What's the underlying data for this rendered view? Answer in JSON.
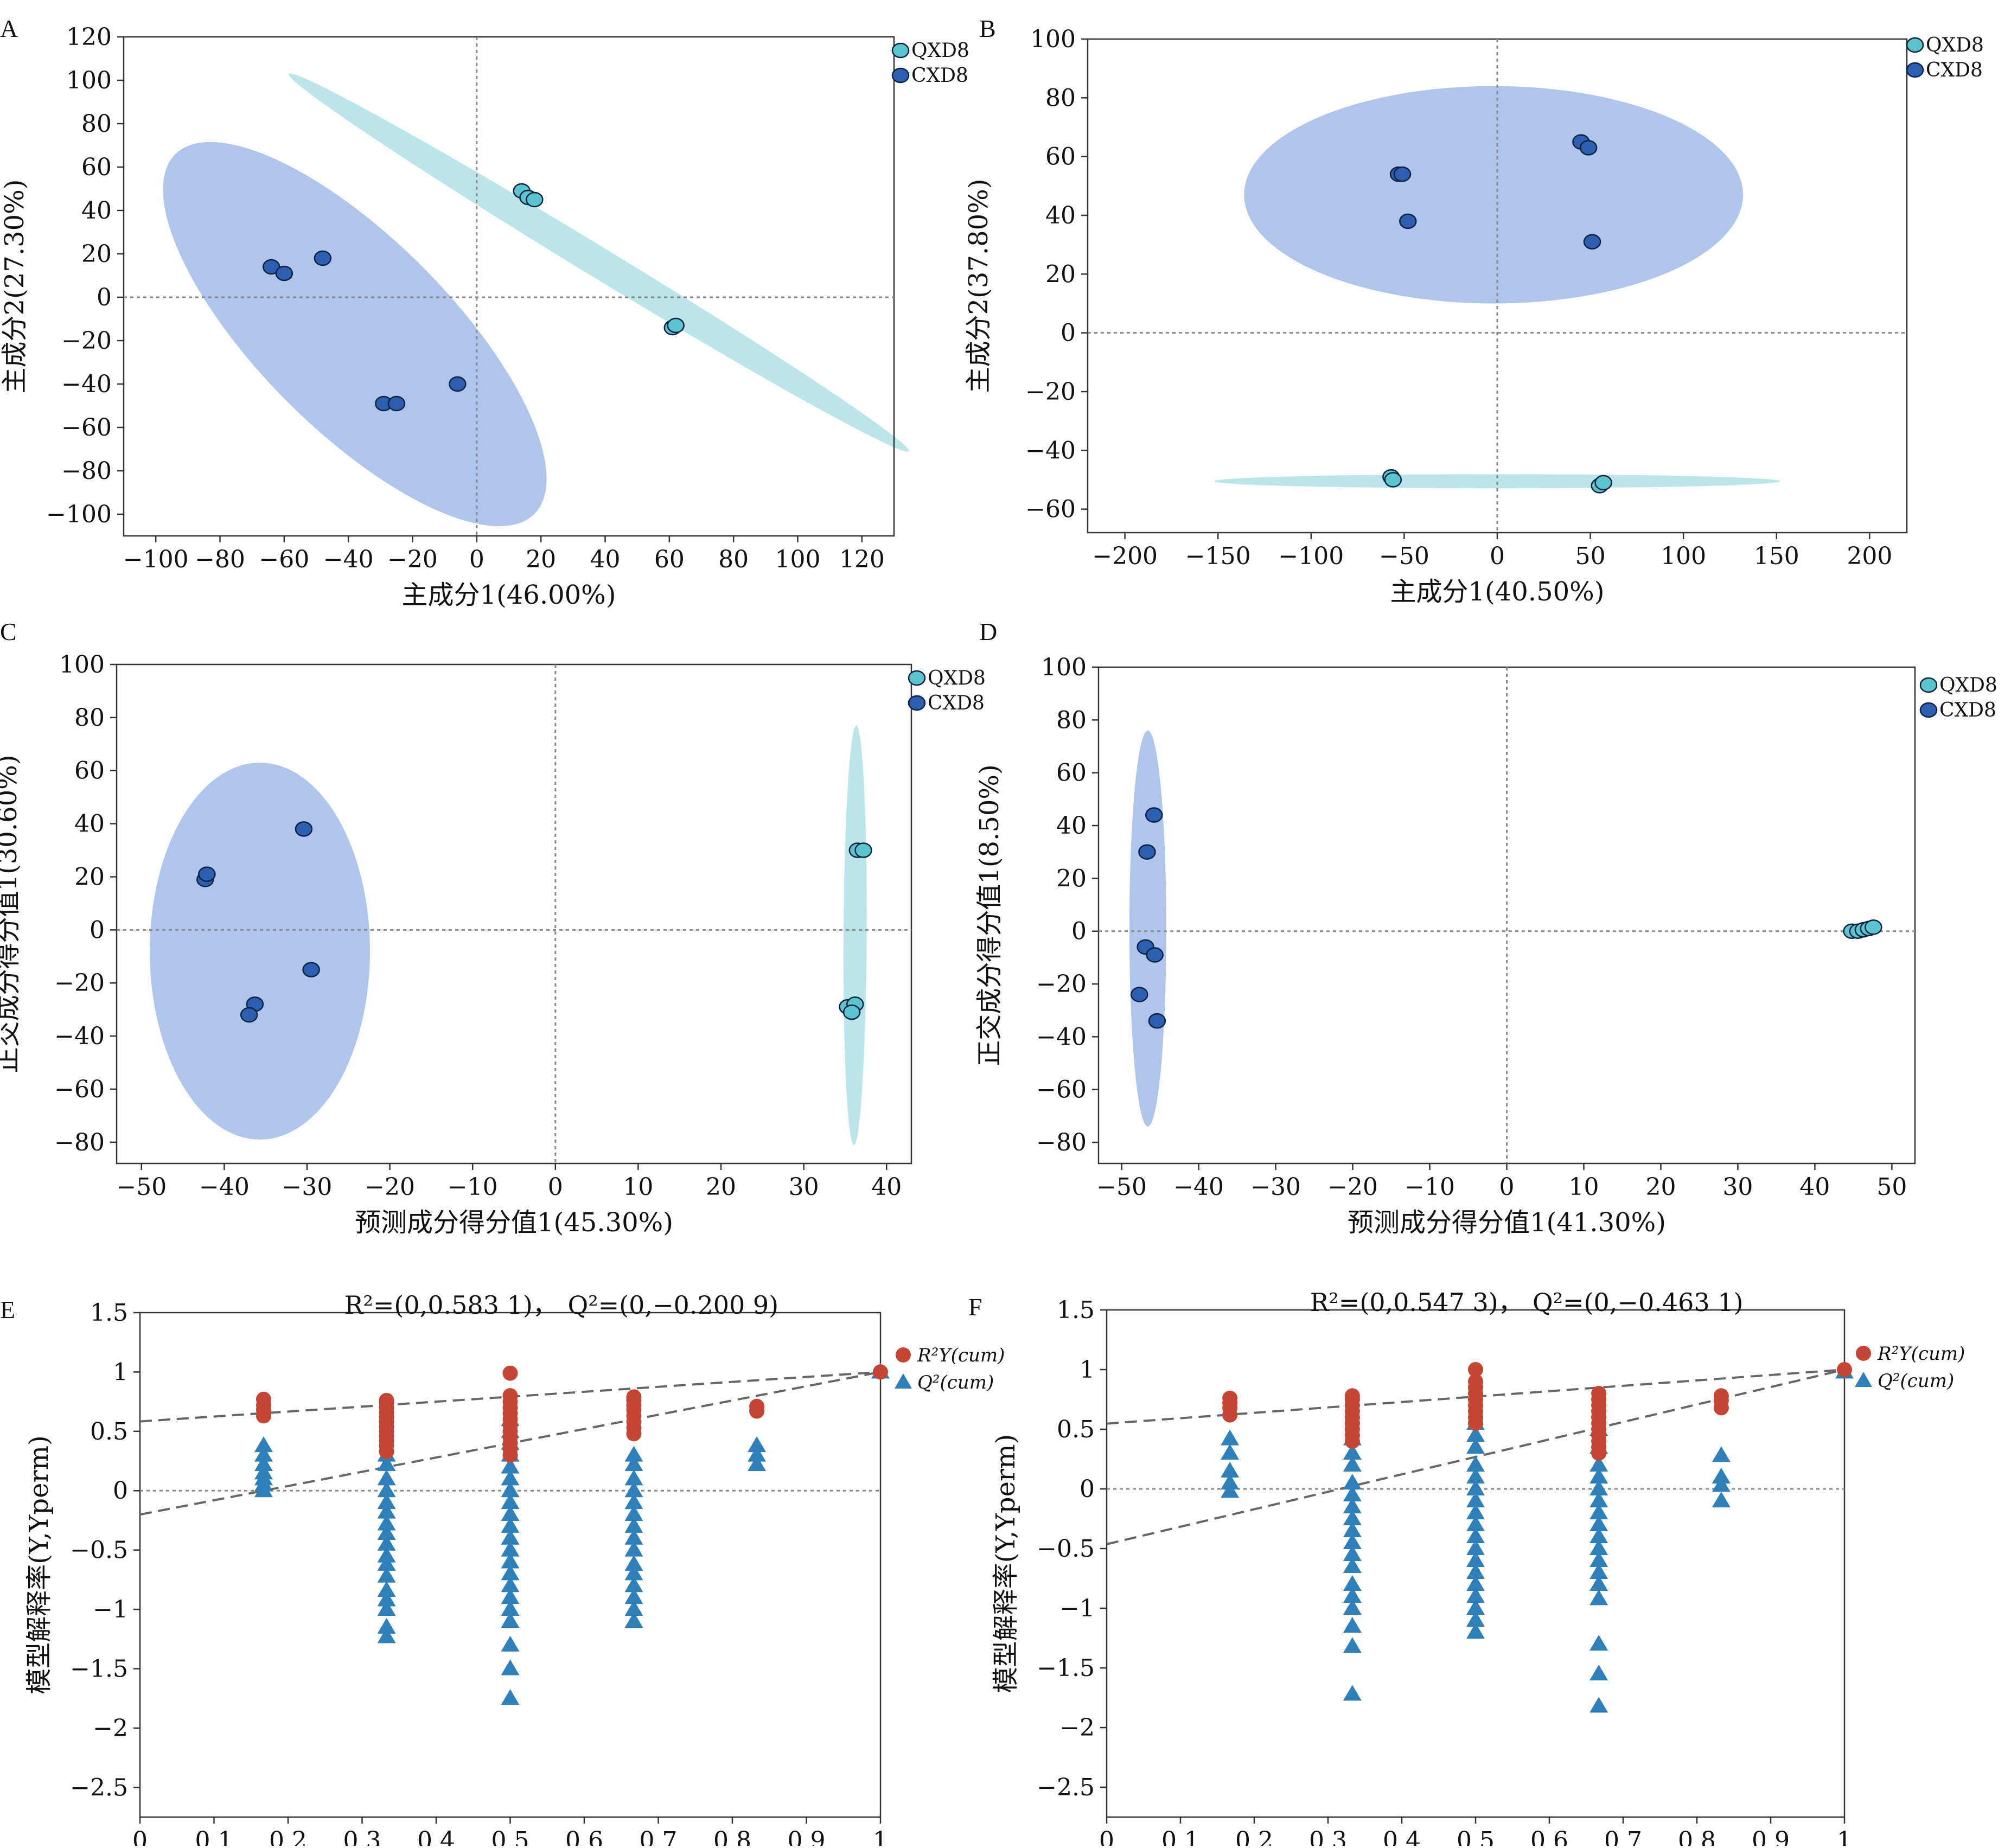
{
  "colors": {
    "qxd8_fill": "#5cc4cf",
    "qxd8_ellipse": "#8fd3dc",
    "cxd8_fill": "#2d5fb0",
    "cxd8_ellipse": "#7a9fde",
    "r2_color": "#c44534",
    "q2_color": "#2f80b8",
    "axis": "#333333",
    "zero_line": "#888888"
  },
  "chart_data": [
    {
      "panel": "A",
      "type": "scatter",
      "xlabel": "主成分1(46.00%)",
      "ylabel": "主成分2(27.30%)",
      "xlim": [
        -110,
        130
      ],
      "ylim": [
        -110,
        120
      ],
      "xticks": [
        -100,
        -80,
        -60,
        -40,
        -20,
        0,
        20,
        40,
        60,
        80,
        100,
        120
      ],
      "yticks": [
        -100,
        -80,
        -60,
        -40,
        -20,
        0,
        20,
        40,
        60,
        80,
        100,
        120
      ],
      "xtick_labels": [
        "−100",
        "−80",
        "−60",
        "−40",
        "−20",
        "0",
        "20",
        "40",
        "60",
        "80",
        "100",
        "120"
      ],
      "ytick_labels": [
        "−100",
        "−80",
        "−60",
        "−40",
        "−20",
        "0",
        "20",
        "40",
        "60",
        "80",
        "100",
        "120"
      ],
      "legend": [
        "QXD8",
        "CXD8"
      ],
      "series": [
        {
          "name": "QXD8",
          "points": [
            [
              14,
              49
            ],
            [
              16,
              46
            ],
            [
              18,
              45
            ],
            [
              61,
              -14
            ],
            [
              62,
              -13
            ]
          ],
          "ellipse": {
            "cx": 38,
            "cy": 16,
            "rx": 130,
            "ry": 7,
            "angle_deg": -42
          }
        },
        {
          "name": "CXD8",
          "points": [
            [
              -64,
              14
            ],
            [
              -60,
              11
            ],
            [
              -48,
              18
            ],
            [
              -29,
              -49
            ],
            [
              -25,
              -49
            ],
            [
              -6,
              -40
            ]
          ],
          "ellipse": {
            "cx": -38,
            "cy": -17,
            "rx": 100,
            "ry": 44,
            "angle_deg": -56
          }
        }
      ]
    },
    {
      "panel": "B",
      "type": "scatter",
      "xlabel": "主成分1(40.50%)",
      "ylabel": "主成分2(37.80%)",
      "xlim": [
        -220,
        220
      ],
      "ylim": [
        -68,
        100
      ],
      "xticks": [
        -200,
        -150,
        -100,
        -50,
        0,
        50,
        100,
        150,
        200
      ],
      "yticks": [
        -60,
        -40,
        -20,
        0,
        20,
        40,
        60,
        80,
        100
      ],
      "xtick_labels": [
        "−200",
        "−150",
        "−100",
        "−50",
        "0",
        "50",
        "100",
        "150",
        "200"
      ],
      "ytick_labels": [
        "−60",
        "−40",
        "−20",
        "0",
        "20",
        "40",
        "60",
        "80",
        "100"
      ],
      "legend": [
        "QXD8",
        "CXD8"
      ],
      "series": [
        {
          "name": "QXD8",
          "points": [
            [
              -57,
              -49
            ],
            [
              -56,
              -50
            ],
            [
              55,
              -52
            ],
            [
              57,
              -51
            ]
          ],
          "ellipse": {
            "cx": 0,
            "cy": -50.5,
            "rx": 152,
            "ry": 2.4,
            "angle_deg": 0
          }
        },
        {
          "name": "CXD8",
          "points": [
            [
              -53,
              54
            ],
            [
              -51,
              54
            ],
            [
              -48,
              38
            ],
            [
              45,
              65
            ],
            [
              49,
              63
            ],
            [
              51,
              31
            ]
          ],
          "ellipse": {
            "cx": -2,
            "cy": 47,
            "rx": 134,
            "ry": 37,
            "angle_deg": 0
          }
        }
      ]
    },
    {
      "panel": "C",
      "type": "scatter",
      "xlabel": "预测成分得分值1(45.30%)",
      "ylabel": "正交成分得分值1(30.60%)",
      "xlim": [
        -53,
        43
      ],
      "ylim": [
        -88,
        100
      ],
      "xticks": [
        -50,
        -40,
        -30,
        -20,
        -10,
        0,
        10,
        20,
        30,
        40
      ],
      "yticks": [
        -80,
        -60,
        -40,
        -20,
        0,
        20,
        40,
        60,
        80,
        100
      ],
      "xtick_labels": [
        "−50",
        "−40",
        "−30",
        "−20",
        "−10",
        "0",
        "10",
        "20",
        "30",
        "40"
      ],
      "ytick_labels": [
        "−80",
        "−60",
        "−40",
        "−20",
        "0",
        "20",
        "40",
        "60",
        "80",
        "100"
      ],
      "legend": [
        "QXD8",
        "CXD8"
      ],
      "series": [
        {
          "name": "QXD8",
          "points": [
            [
              36.5,
              30
            ],
            [
              37.2,
              30
            ],
            [
              35.3,
              -29
            ],
            [
              36.2,
              -28
            ],
            [
              35.8,
              -31
            ]
          ],
          "ellipse": {
            "cx": 36.2,
            "cy": -2,
            "rx": 1.4,
            "ry": 79,
            "angle_deg": -1
          }
        },
        {
          "name": "CXD8",
          "points": [
            [
              -42.3,
              19
            ],
            [
              -42.1,
              21
            ],
            [
              -30.4,
              38
            ],
            [
              -36.3,
              -28
            ],
            [
              -37,
              -32
            ],
            [
              -29.5,
              -15
            ]
          ],
          "ellipse": {
            "cx": -35.7,
            "cy": -8,
            "rx": 13.3,
            "ry": 71,
            "angle_deg": 0
          }
        }
      ]
    },
    {
      "panel": "D",
      "type": "scatter",
      "xlabel": "预测成分得分值1(41.30%)",
      "ylabel": "正交成分得分值1(8.50%)",
      "xlim": [
        -53,
        53
      ],
      "ylim": [
        -88,
        100
      ],
      "xticks": [
        -50,
        -40,
        -30,
        -20,
        -10,
        0,
        10,
        20,
        30,
        40,
        50
      ],
      "yticks": [
        -80,
        -60,
        -40,
        -20,
        0,
        20,
        40,
        60,
        80,
        100
      ],
      "xtick_labels": [
        "−50",
        "−40",
        "−30",
        "−20",
        "−10",
        "0",
        "10",
        "20",
        "30",
        "40",
        "50"
      ],
      "ytick_labels": [
        "−80",
        "−60",
        "−40",
        "−20",
        "0",
        "20",
        "40",
        "60",
        "80",
        "100"
      ],
      "legend": [
        "QXD8",
        "CXD8"
      ],
      "series": [
        {
          "name": "QXD8",
          "points": [
            [
              44.8,
              0
            ],
            [
              45.6,
              0
            ],
            [
              46.3,
              0.5
            ],
            [
              47,
              1
            ],
            [
              47.6,
              1.5
            ]
          ],
          "ellipse": null
        },
        {
          "name": "CXD8",
          "points": [
            [
              -45.8,
              44
            ],
            [
              -46.7,
              30
            ],
            [
              -46.9,
              -6
            ],
            [
              -45.7,
              -9
            ],
            [
              -47.7,
              -24
            ],
            [
              -45.4,
              -34
            ]
          ],
          "ellipse": {
            "cx": -46.6,
            "cy": 1,
            "rx": 2.4,
            "ry": 75,
            "angle_deg": 0
          }
        }
      ]
    },
    {
      "panel": "E",
      "type": "scatter",
      "annotation": {
        "r2": "R²=(0,0.583 1)，",
        "q2": "Q²=(0,−0.200 9)"
      },
      "ylabel": "模型解释率(Y,Yperm)",
      "xlim": [
        0,
        1
      ],
      "ylim": [
        -2.75,
        1.5
      ],
      "xticks": [
        0,
        0.1,
        0.2,
        0.3,
        0.4,
        0.5,
        0.6,
        0.7,
        0.8,
        0.9,
        1
      ],
      "yticks": [
        -2.5,
        -2,
        -1.5,
        -1,
        -0.5,
        0,
        0.5,
        1,
        1.5
      ],
      "xtick_labels": [
        "0",
        "0.1",
        "0.2",
        "0.3",
        "0.4",
        "0.5",
        "0.6",
        "0.7",
        "0.8",
        "0.9",
        "1"
      ],
      "ytick_labels": [
        "−2.5",
        "−2",
        "−1.5",
        "−1",
        "−0.5",
        "0",
        "0.5",
        "1",
        "1.5"
      ],
      "legend": [
        "R²Y(cum)",
        "Q²(cum)"
      ],
      "r2_line": [
        [
          0,
          0.5831
        ],
        [
          1,
          1
        ]
      ],
      "q2_line": [
        [
          0,
          -0.2009
        ],
        [
          1,
          1
        ]
      ],
      "columns": [
        {
          "x": 0.167,
          "r2": [
            0.63,
            0.68,
            0.72,
            0.77
          ],
          "q2": [
            0.38,
            0.3,
            0.22,
            0.15,
            0.1,
            0.05,
            0.0
          ]
        },
        {
          "x": 0.333,
          "r2": [
            0.33,
            0.38,
            0.42,
            0.46,
            0.5,
            0.54,
            0.58,
            0.62,
            0.66,
            0.7,
            0.74,
            0.76
          ],
          "q2": [
            0.3,
            0.22,
            0.1,
            0.0,
            -0.1,
            -0.18,
            -0.28,
            -0.36,
            -0.45,
            -0.55,
            -0.62,
            -0.72,
            -0.84,
            -0.92,
            -1.0,
            -1.15,
            -1.23
          ]
        },
        {
          "x": 0.5,
          "r2": [
            0.3,
            0.35,
            0.4,
            0.45,
            0.5,
            0.55,
            0.6,
            0.65,
            0.7,
            0.75,
            0.8,
            0.99
          ],
          "q2": [
            0.6,
            0.5,
            0.4,
            0.3,
            0.2,
            0.1,
            0.0,
            -0.1,
            -0.2,
            -0.3,
            -0.4,
            -0.5,
            -0.6,
            -0.7,
            -0.8,
            -0.9,
            -1.0,
            -1.1,
            -1.3,
            -1.5,
            -1.75
          ]
        },
        {
          "x": 0.667,
          "r2": [
            0.48,
            0.53,
            0.58,
            0.63,
            0.68,
            0.72,
            0.76,
            0.79
          ],
          "q2": [
            0.3,
            0.22,
            0.1,
            0.0,
            -0.1,
            -0.2,
            -0.3,
            -0.4,
            -0.5,
            -0.62,
            -0.7,
            -0.8,
            -0.9,
            -1.0,
            -1.1
          ]
        },
        {
          "x": 0.833,
          "r2": [
            0.67,
            0.71
          ],
          "q2": [
            0.38,
            0.3,
            0.22
          ]
        },
        {
          "x": 1.0,
          "r2": [
            1.0
          ],
          "q2": [
            1.0
          ]
        }
      ]
    },
    {
      "panel": "F",
      "type": "scatter",
      "annotation": {
        "r2": "R²=(0,0.547 3)，",
        "q2": "Q²=(0,−0.463 1)"
      },
      "ylabel": "模型解释率(Y,Yperm)",
      "xlim": [
        0,
        1
      ],
      "ylim": [
        -2.75,
        1.5
      ],
      "xticks": [
        0,
        0.1,
        0.2,
        0.3,
        0.4,
        0.5,
        0.6,
        0.7,
        0.8,
        0.9,
        1
      ],
      "yticks": [
        -2.5,
        -2,
        -1.5,
        -1,
        -0.5,
        0,
        0.5,
        1,
        1.5
      ],
      "xtick_labels": [
        "0",
        "0.1",
        "0.2",
        "0.3",
        "0.4",
        "0.5",
        "0.6",
        "0.7",
        "0.8",
        "0.9",
        "1"
      ],
      "ytick_labels": [
        "−2.5",
        "−2",
        "−1.5",
        "−1",
        "−0.5",
        "0",
        "0.5",
        "1",
        "1.5"
      ],
      "legend": [
        "R²Y(cum)",
        "Q²(cum)"
      ],
      "r2_line": [
        [
          0,
          0.5473
        ],
        [
          1,
          1
        ]
      ],
      "q2_line": [
        [
          0,
          -0.4631
        ],
        [
          1,
          1
        ]
      ],
      "columns": [
        {
          "x": 0.167,
          "r2": [
            0.62,
            0.68,
            0.72,
            0.76
          ],
          "q2": [
            0.42,
            0.3,
            0.15,
            0.05,
            -0.02
          ]
        },
        {
          "x": 0.333,
          "r2": [
            0.4,
            0.45,
            0.5,
            0.55,
            0.6,
            0.65,
            0.7,
            0.75,
            0.78
          ],
          "q2": [
            0.42,
            0.3,
            0.2,
            0.05,
            -0.05,
            -0.15,
            -0.25,
            -0.35,
            -0.45,
            -0.55,
            -0.65,
            -0.8,
            -0.9,
            -1.0,
            -1.15,
            -1.32,
            -1.72
          ]
        },
        {
          "x": 0.5,
          "r2": [
            0.55,
            0.6,
            0.65,
            0.7,
            0.75,
            0.8,
            0.85,
            0.9,
            1.0
          ],
          "q2": [
            0.55,
            0.45,
            0.35,
            0.2,
            0.1,
            0.0,
            -0.1,
            -0.2,
            -0.3,
            -0.4,
            -0.5,
            -0.6,
            -0.7,
            -0.8,
            -0.9,
            -1.0,
            -1.1,
            -1.2
          ]
        },
        {
          "x": 0.667,
          "r2": [
            0.3,
            0.35,
            0.4,
            0.45,
            0.5,
            0.55,
            0.6,
            0.65,
            0.7,
            0.75,
            0.8
          ],
          "q2": [
            0.5,
            0.35,
            0.2,
            0.1,
            0.0,
            -0.1,
            -0.2,
            -0.3,
            -0.4,
            -0.5,
            -0.6,
            -0.7,
            -0.8,
            -0.92,
            -1.3,
            -1.55,
            -1.82
          ]
        },
        {
          "x": 0.833,
          "r2": [
            0.68,
            0.74,
            0.78
          ],
          "q2": [
            0.28,
            0.1,
            0.03,
            -0.1
          ]
        },
        {
          "x": 1.0,
          "r2": [
            1.0
          ],
          "q2": [
            0.98
          ]
        }
      ]
    }
  ]
}
